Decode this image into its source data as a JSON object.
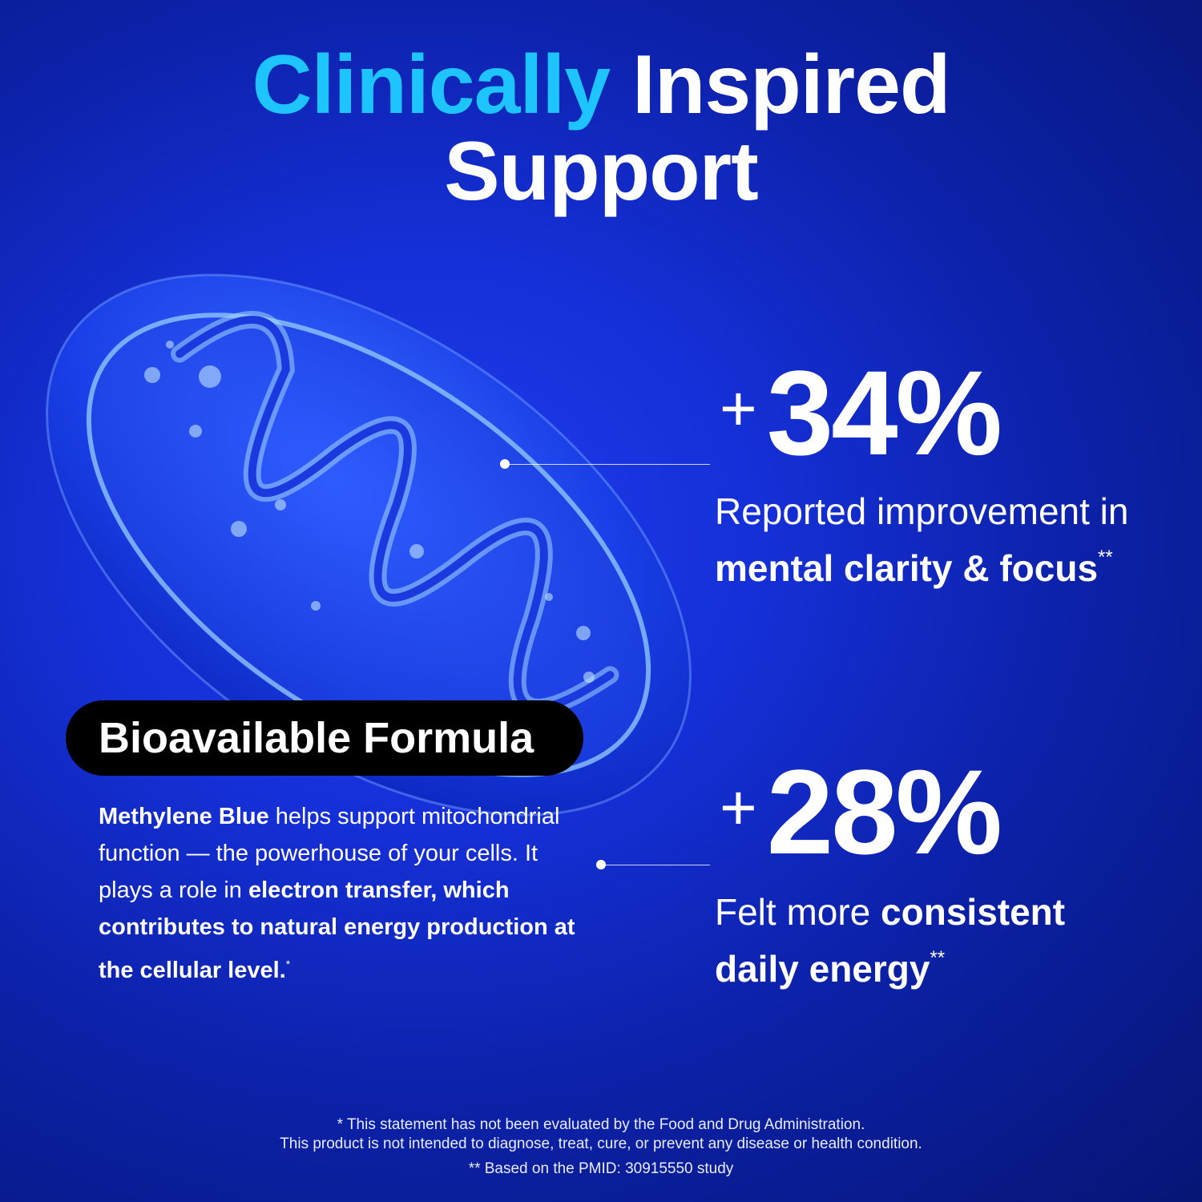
{
  "colors": {
    "accent": "#1ec4ff",
    "background": "#1530d8",
    "pill": "#000000"
  },
  "title": {
    "accent_word": "Clinically",
    "rest_line1": "Inspired",
    "line2": "Support"
  },
  "stats": [
    {
      "plus": "+",
      "value": "34%",
      "desc_regular": "Reported improvement in ",
      "desc_bold": "mental clarity & focus",
      "mark": "**"
    },
    {
      "plus": "+",
      "value": "28%",
      "desc_regular": "Felt more ",
      "desc_bold": "consistent daily energy",
      "mark": "**"
    }
  ],
  "badge": {
    "label": "Bioavailable Formula"
  },
  "body": {
    "bold1": "Methylene Blue",
    "text1": " helps support mitochondrial function — the powerhouse of your cells. It plays a role in ",
    "bold2": "electron transfer, which contributes to natural energy production at the cellular level.",
    "mark": "*"
  },
  "footer": {
    "line1": "* This statement has not been evaluated by the Food and Drug Administration.",
    "line2": "This product is not intended to diagnose, treat, cure, or prevent any disease or health condition.",
    "line3": "** Based on the PMID: 30915550 study"
  },
  "image": {
    "icon": "mitochondrion-illustration"
  }
}
